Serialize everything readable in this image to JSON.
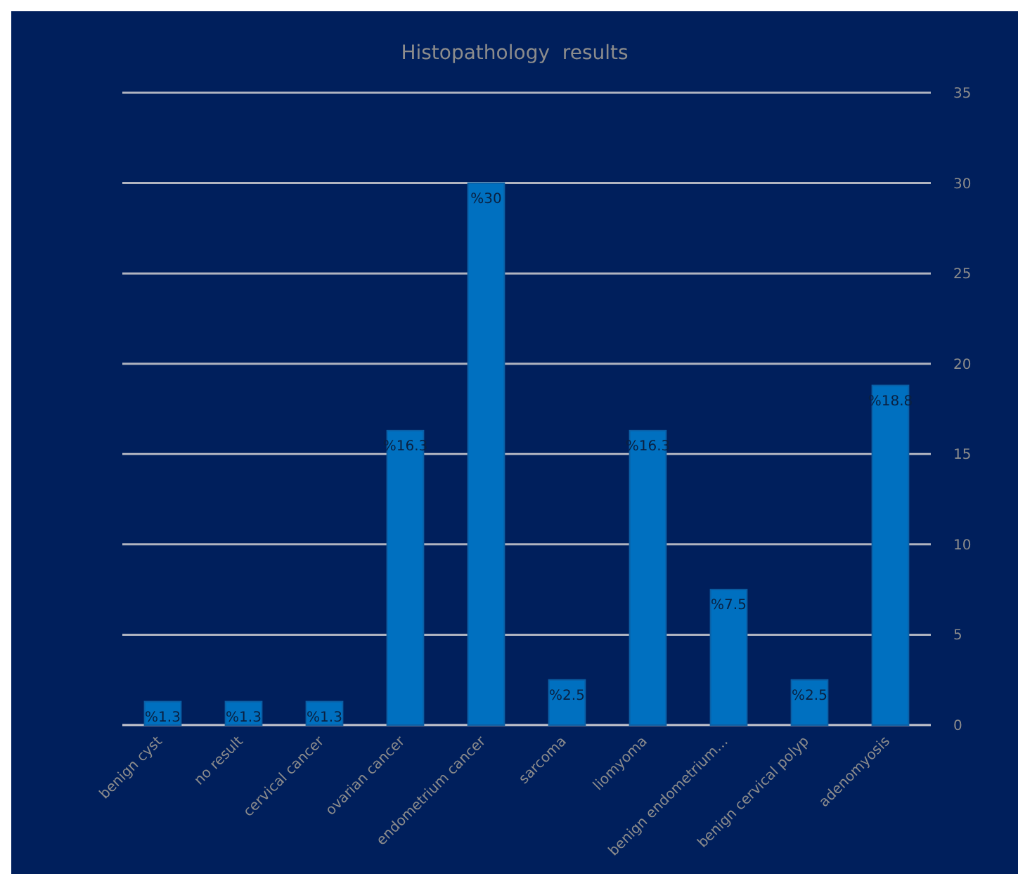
{
  "chart_data": {
    "type": "bar",
    "title": "Histopathology  results",
    "categories": [
      "benign cyst",
      "no result",
      "cervical cancer",
      "ovarian cancer",
      "endometrium cancer",
      "sarcoma",
      "liomyoma",
      "benign endometrium…",
      "benign cervical polyp",
      "adenomyosis"
    ],
    "values": [
      1.3,
      1.3,
      1.3,
      16.3,
      30,
      2.5,
      16.3,
      7.5,
      2.5,
      18.8
    ],
    "value_labels": [
      "%1.3",
      "%1.3",
      "%1.3",
      "%16.3",
      "%30",
      "%2.5",
      "%16.3",
      "%7.5",
      "%2.5",
      "%18.8"
    ],
    "color": "#0070c0",
    "ylim": [
      0,
      35
    ],
    "yticks": [
      0,
      5,
      10,
      15,
      20,
      25,
      30,
      35
    ],
    "grid": "y"
  }
}
